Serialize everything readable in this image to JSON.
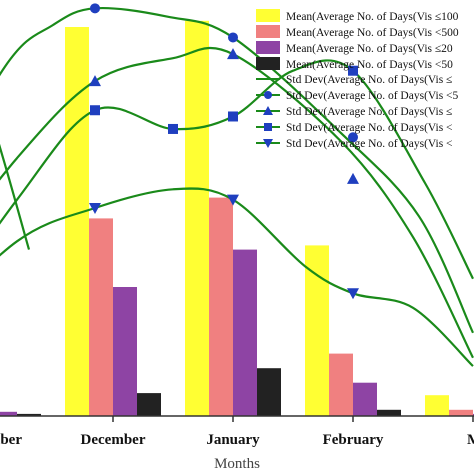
{
  "chart_data": {
    "type": "bar",
    "title": "",
    "xlabel": "Months",
    "ylabel": "",
    "ylim": [
      0,
      10
    ],
    "grid": false,
    "legend_position": "top-right",
    "categories": [
      "November",
      "December",
      "January",
      "February",
      "March"
    ],
    "category_labels": [
      "mber",
      "December",
      "January",
      "February",
      "M"
    ],
    "bar_series": [
      {
        "name": "Mean(Average No. of Days(Vis ≤100",
        "color": "#ffff33",
        "values": [
          0.1,
          9.35,
          9.5,
          4.1,
          0.5
        ]
      },
      {
        "name": "Mean(Average No. of Days(Vis <500",
        "color": "#f08080",
        "values": [
          0.1,
          4.75,
          5.25,
          1.5,
          0.15
        ]
      },
      {
        "name": "Mean(Average No. of Days(Vis ≤20",
        "color": "#8e44a4",
        "values": [
          0.1,
          3.1,
          4.0,
          0.8,
          0.05
        ]
      },
      {
        "name": "Mean(Average No. of Days(Vis <50",
        "color": "#222222",
        "values": [
          0.05,
          0.55,
          1.15,
          0.15,
          0.0
        ]
      }
    ],
    "line_series": [
      {
        "name": "Std Dev(Average No. of Days(Vis ≤",
        "marker": "none",
        "color": "#1a8a1a",
        "curve": [
          [
            -0.6,
            9.7
          ],
          [
            -0.3,
            9.4
          ],
          [
            0.0,
            7.0
          ],
          [
            0.3,
            4.0
          ]
        ]
      },
      {
        "name": "Std Dev(Average No. of Days(Vis <5",
        "marker": "circle",
        "color": "#1a8a1a",
        "curve": [
          [
            -0.6,
            4.8
          ],
          [
            0.1,
            8.4
          ],
          [
            0.5,
            9.4
          ],
          [
            0.85,
            9.8
          ],
          [
            1.45,
            9.6
          ],
          [
            2.0,
            9.1
          ],
          [
            2.9,
            6.8
          ],
          [
            3.55,
            4.8
          ],
          [
            4.0,
            2.0
          ]
        ],
        "points": [
          [
            0.85,
            9.8
          ],
          [
            2.0,
            9.1
          ],
          [
            3.0,
            6.7
          ]
        ]
      },
      {
        "name": "Std Dev(Average No. of Days(Vis ≤",
        "marker": "triangle-up",
        "color": "#1a8a1a",
        "curve": [
          [
            -0.6,
            3.2
          ],
          [
            0.2,
            6.2
          ],
          [
            0.85,
            8.05
          ],
          [
            1.5,
            8.6
          ],
          [
            2.0,
            8.7
          ],
          [
            2.9,
            6.6
          ],
          [
            3.5,
            4.3
          ],
          [
            4.0,
            1.4
          ]
        ],
        "points": [
          [
            0.85,
            8.05
          ],
          [
            2.0,
            8.7
          ],
          [
            3.0,
            5.7
          ]
        ]
      },
      {
        "name": "Std Dev(Average No. of Days(Vis <",
        "marker": "square",
        "color": "#1a8a1a",
        "curve": [
          [
            -0.6,
            1.9
          ],
          [
            0.2,
            5.2
          ],
          [
            0.85,
            7.35
          ],
          [
            1.5,
            6.9
          ],
          [
            2.0,
            7.2
          ],
          [
            2.5,
            8.3
          ],
          [
            3.0,
            8.3
          ],
          [
            3.6,
            5.6
          ],
          [
            4.0,
            3.3
          ]
        ],
        "points": [
          [
            0.85,
            7.35
          ],
          [
            1.5,
            6.9
          ],
          [
            2.0,
            7.2
          ],
          [
            3.0,
            8.3
          ]
        ]
      },
      {
        "name": "Std Dev(Average No. of Days(Vis <",
        "marker": "triangle-down",
        "color": "#1a8a1a",
        "curve": [
          [
            -0.6,
            2.0
          ],
          [
            0.2,
            4.2
          ],
          [
            0.85,
            5.0
          ],
          [
            1.5,
            5.45
          ],
          [
            2.0,
            5.2
          ],
          [
            2.6,
            3.6
          ],
          [
            3.0,
            2.95
          ],
          [
            3.5,
            2.6
          ],
          [
            4.0,
            1.2
          ]
        ],
        "points": [
          [
            0.85,
            5.0
          ],
          [
            2.0,
            5.2
          ],
          [
            3.0,
            2.95
          ]
        ]
      }
    ]
  }
}
